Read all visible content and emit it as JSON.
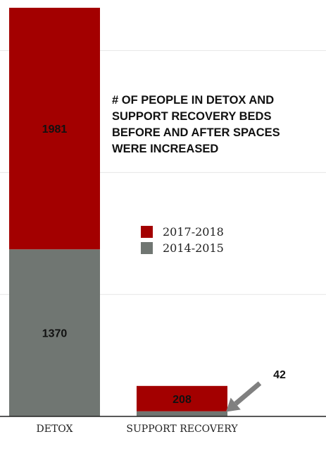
{
  "chart_data": {
    "type": "bar",
    "stacked": true,
    "title_lines": [
      "# OF PEOPLE IN DETOX AND",
      "SUPPORT RECOVERY BEDS",
      "BEFORE AND AFTER SPACES",
      "WERE INCREASED"
    ],
    "categories": [
      "DETOX",
      "SUPPORT RECOVERY"
    ],
    "series": [
      {
        "name": "2014-2015",
        "values": [
          1370,
          42
        ],
        "color": "#707672"
      },
      {
        "name": "2017-2018",
        "values": [
          1981,
          208
        ],
        "color": "#a30000"
      }
    ],
    "legend_order": [
      1,
      0
    ],
    "legend_position": "right-middle",
    "callout": {
      "text": "42",
      "category": "SUPPORT RECOVERY",
      "series": "2014-2015",
      "arrow_color": "#808080"
    },
    "ylim": [
      0,
      3351
    ],
    "gridlines": [
      1000,
      2000,
      3000
    ],
    "grid": true,
    "label_color": "#111111"
  }
}
